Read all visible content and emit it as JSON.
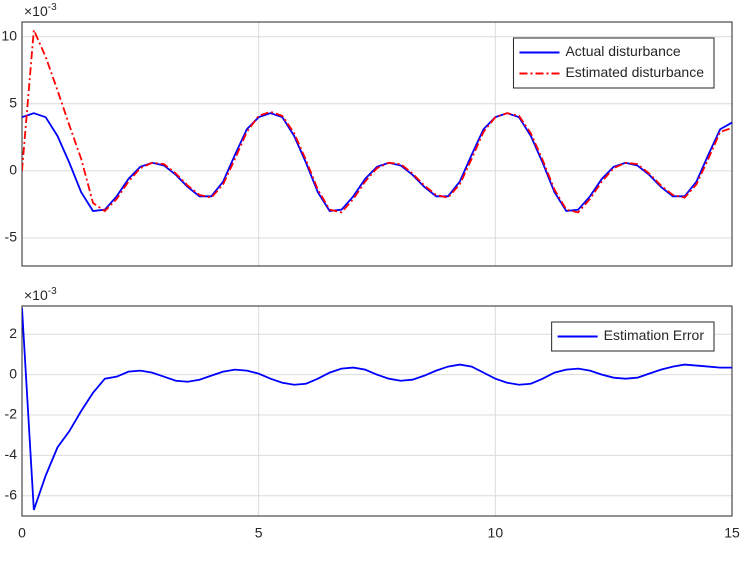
{
  "chart_data": [
    {
      "type": "line",
      "exponent_label": {
        "base": "×10",
        "power": "-3"
      },
      "x": [
        0,
        0.25,
        0.5,
        0.75,
        1,
        1.25,
        1.5,
        1.75,
        2,
        2.25,
        2.5,
        2.75,
        3,
        3.25,
        3.5,
        3.75,
        4,
        4.25,
        4.5,
        4.75,
        5,
        5.25,
        5.5,
        5.75,
        6,
        6.25,
        6.5,
        6.75,
        7,
        7.25,
        7.5,
        7.75,
        8,
        8.25,
        8.5,
        8.75,
        9,
        9.25,
        9.5,
        9.75,
        10,
        10.25,
        10.5,
        10.75,
        11,
        11.25,
        11.5,
        11.75,
        12,
        12.25,
        12.5,
        12.75,
        13,
        13.25,
        13.5,
        13.75,
        14,
        14.25,
        14.5,
        14.75,
        15
      ],
      "series": [
        {
          "name": "Actual disturbance",
          "color": "#0000ff",
          "linestyle": "solid",
          "values": [
            4.0,
            4.3,
            4.0,
            2.6,
            0.6,
            -1.6,
            -3.0,
            -2.9,
            -1.9,
            -0.6,
            0.3,
            0.6,
            0.4,
            -0.3,
            -1.2,
            -1.9,
            -1.9,
            -0.8,
            1.2,
            3.1,
            4.0,
            4.3,
            4.0,
            2.6,
            0.6,
            -1.6,
            -3.0,
            -2.9,
            -1.9,
            -0.6,
            0.3,
            0.6,
            0.4,
            -0.3,
            -1.2,
            -1.9,
            -1.9,
            -0.8,
            1.2,
            3.1,
            4.0,
            4.3,
            4.0,
            2.6,
            0.6,
            -1.6,
            -3.0,
            -2.9,
            -1.9,
            -0.6,
            0.3,
            0.6,
            0.4,
            -0.3,
            -1.2,
            -1.9,
            -1.9,
            -0.8,
            1.2,
            3.1,
            3.6
          ]
        },
        {
          "name": "Estimated disturbance",
          "color": "#ff0000",
          "linestyle": "dashdot",
          "values": [
            0,
            10.5,
            8.5,
            6.0,
            3.4,
            0.9,
            -2.4,
            -3.0,
            -2.1,
            -0.8,
            0.2,
            0.6,
            0.5,
            -0.2,
            -1.1,
            -1.8,
            -2.0,
            -1.0,
            0.9,
            2.9,
            4.1,
            4.4,
            4.1,
            2.8,
            0.8,
            -1.4,
            -2.9,
            -3.1,
            -2.1,
            -0.8,
            0.2,
            0.6,
            0.5,
            -0.2,
            -1.1,
            -1.8,
            -2.0,
            -1.0,
            0.9,
            2.9,
            4.0,
            4.3,
            4.1,
            2.8,
            0.8,
            -1.4,
            -2.9,
            -3.1,
            -2.1,
            -0.8,
            0.2,
            0.6,
            0.5,
            -0.2,
            -1.1,
            -1.8,
            -2.0,
            -1.0,
            0.9,
            2.9,
            3.2
          ]
        }
      ],
      "xlim": [
        0,
        15
      ],
      "xticks": [
        0,
        5,
        10,
        15
      ],
      "show_xtick_labels": false,
      "ylim": [
        -7.1,
        11.1
      ],
      "yticks": [
        -5,
        0,
        5,
        10
      ],
      "grid": true,
      "legend": "upper right"
    },
    {
      "type": "line",
      "exponent_label": {
        "base": "×10",
        "power": "-3"
      },
      "x": [
        0,
        0.25,
        0.5,
        0.75,
        1,
        1.25,
        1.5,
        1.75,
        2,
        2.25,
        2.5,
        2.75,
        3,
        3.25,
        3.5,
        3.75,
        4,
        4.25,
        4.5,
        4.75,
        5,
        5.25,
        5.5,
        5.75,
        6,
        6.25,
        6.5,
        6.75,
        7,
        7.25,
        7.5,
        7.75,
        8,
        8.25,
        8.5,
        8.75,
        9,
        9.25,
        9.5,
        9.75,
        10,
        10.25,
        10.5,
        10.75,
        11,
        11.25,
        11.5,
        11.75,
        12,
        12.25,
        12.5,
        12.75,
        13,
        13.25,
        13.5,
        13.75,
        14,
        14.25,
        14.5,
        14.75,
        15
      ],
      "series": [
        {
          "name": "Estimation Error",
          "color": "#0000ff",
          "linestyle": "solid",
          "values": [
            3.3,
            -6.7,
            -5.0,
            -3.6,
            -2.8,
            -1.8,
            -0.9,
            -0.2,
            -0.1,
            0.15,
            0.2,
            0.1,
            -0.1,
            -0.3,
            -0.35,
            -0.25,
            -0.05,
            0.15,
            0.25,
            0.2,
            0.05,
            -0.2,
            -0.4,
            -0.5,
            -0.45,
            -0.2,
            0.1,
            0.3,
            0.35,
            0.25,
            0.0,
            -0.2,
            -0.3,
            -0.25,
            -0.05,
            0.2,
            0.4,
            0.5,
            0.4,
            0.1,
            -0.2,
            -0.4,
            -0.5,
            -0.45,
            -0.2,
            0.1,
            0.25,
            0.3,
            0.2,
            0.0,
            -0.15,
            -0.2,
            -0.15,
            0.05,
            0.25,
            0.4,
            0.5,
            0.45,
            0.4,
            0.35,
            0.35
          ]
        }
      ],
      "xlim": [
        0,
        15
      ],
      "xticks": [
        0,
        5,
        10,
        15
      ],
      "show_xtick_labels": true,
      "ylim": [
        -7,
        3.4
      ],
      "yticks": [
        -6,
        -4,
        -2,
        0,
        2
      ],
      "grid": true,
      "legend": "upper right"
    }
  ]
}
